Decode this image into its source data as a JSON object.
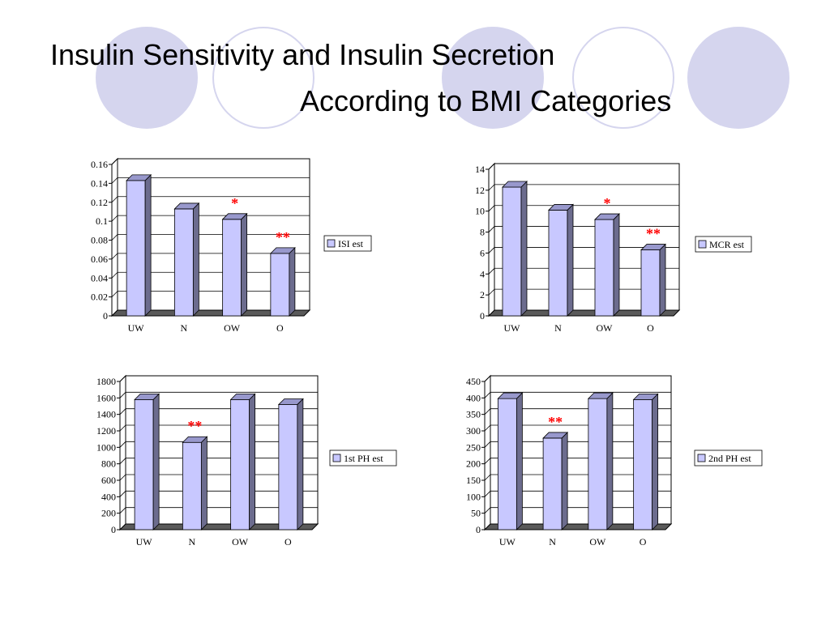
{
  "slide": {
    "title_line1": "Insulin Sensitivity and Insulin Secretion",
    "title_line2": "According to BMI Categories",
    "decor_fill_color": "#d5d5ee"
  },
  "colors": {
    "bar_front": "#c8c8ff",
    "bar_side": "#6c6c8e",
    "bar_top": "#9898cc",
    "floor": "#5a5a5a",
    "significance": "#ff0000"
  },
  "chart_data": [
    {
      "type": "bar",
      "categories": [
        "UW",
        "N",
        "OW",
        "O"
      ],
      "series": [
        {
          "name": "ISI est",
          "values": [
            0.143,
            0.113,
            0.102,
            0.066
          ]
        }
      ],
      "ylim": [
        0,
        0.16
      ],
      "yticks": [
        0,
        0.02,
        0.04,
        0.06,
        0.08,
        0.1,
        0.12,
        0.14,
        0.16
      ],
      "annotations": [
        {
          "category": "OW",
          "text": "*"
        },
        {
          "category": "O",
          "text": "**"
        }
      ],
      "grid": true,
      "legend": "right",
      "xlabel": "",
      "ylabel": ""
    },
    {
      "type": "bar",
      "categories": [
        "UW",
        "N",
        "OW",
        "O"
      ],
      "series": [
        {
          "name": "MCR est",
          "values": [
            12.3,
            10.1,
            9.2,
            6.3
          ]
        }
      ],
      "ylim": [
        0,
        14
      ],
      "yticks": [
        0,
        2,
        4,
        6,
        8,
        10,
        12,
        14
      ],
      "annotations": [
        {
          "category": "OW",
          "text": "*"
        },
        {
          "category": "O",
          "text": "**"
        }
      ],
      "grid": true,
      "legend": "right",
      "xlabel": "",
      "ylabel": ""
    },
    {
      "type": "bar",
      "categories": [
        "UW",
        "N",
        "OW",
        "O"
      ],
      "series": [
        {
          "name": "1st PH est",
          "values": [
            1580,
            1060,
            1580,
            1520
          ]
        }
      ],
      "ylim": [
        0,
        1800
      ],
      "yticks": [
        0,
        200,
        400,
        600,
        800,
        1000,
        1200,
        1400,
        1600,
        1800
      ],
      "annotations": [
        {
          "category": "N",
          "text": "**"
        }
      ],
      "grid": true,
      "legend": "right",
      "xlabel": "",
      "ylabel": ""
    },
    {
      "type": "bar",
      "categories": [
        "UW",
        "N",
        "OW",
        "O"
      ],
      "series": [
        {
          "name": "2nd PH est",
          "values": [
            398,
            278,
            398,
            395
          ]
        }
      ],
      "ylim": [
        0,
        450
      ],
      "yticks": [
        0,
        50,
        100,
        150,
        200,
        250,
        300,
        350,
        400,
        450
      ],
      "annotations": [
        {
          "category": "N",
          "text": "**"
        }
      ],
      "grid": true,
      "legend": "right",
      "xlabel": "",
      "ylabel": ""
    }
  ]
}
